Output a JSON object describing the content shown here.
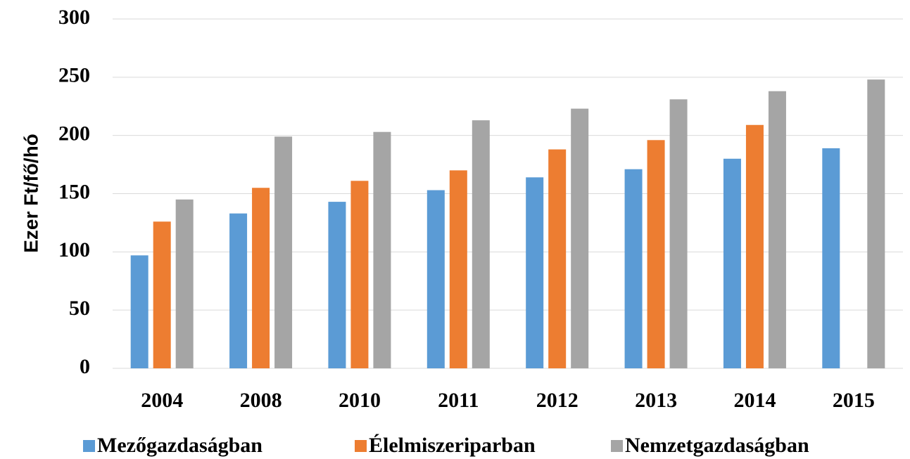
{
  "chart_data": {
    "type": "bar",
    "y_label": "Ezer Ft/fő/hó",
    "categories": [
      "2004",
      "2008",
      "2010",
      "2011",
      "2012",
      "2013",
      "2014",
      "2015"
    ],
    "series": [
      {
        "name": "Mezőgazdaságban",
        "color": "#5b9bd5",
        "values": [
          97,
          133,
          143,
          153,
          164,
          171,
          180,
          189
        ]
      },
      {
        "name": "Élelmiszeriparban",
        "color": "#ed7d31",
        "values": [
          126,
          155,
          161,
          170,
          188,
          196,
          209,
          null
        ]
      },
      {
        "name": "Nemzetgazdaságban",
        "color": "#a5a5a5",
        "values": [
          145,
          199,
          203,
          213,
          223,
          231,
          238,
          248
        ]
      }
    ],
    "ylim": [
      0,
      300
    ],
    "yticks": [
      0,
      50,
      100,
      150,
      200,
      250,
      300
    ],
    "grid": true,
    "legend": "bottom"
  }
}
